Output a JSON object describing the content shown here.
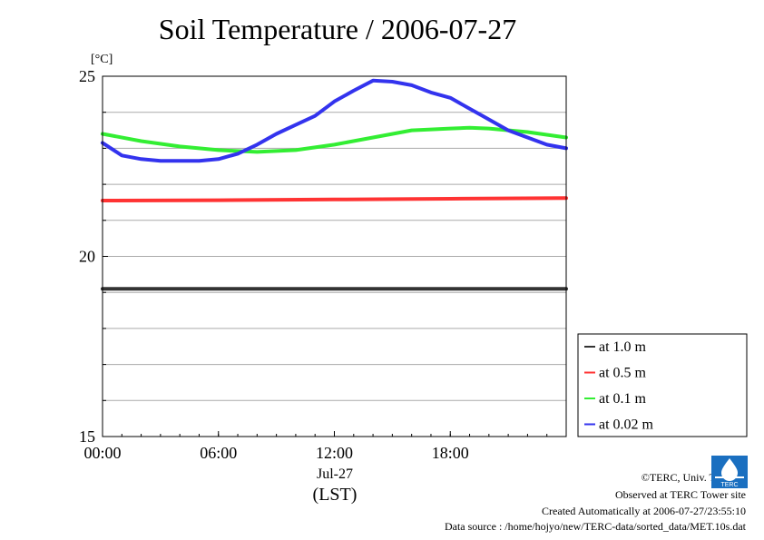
{
  "chart_data": {
    "type": "line",
    "title": "Soil Temperature / 2006-07-27",
    "ylabel": "[°C]",
    "xlabel": "(LST)",
    "date_label": "Jul-27",
    "ylim": [
      15,
      25
    ],
    "xlim": [
      0,
      24
    ],
    "y_ticks": [
      "15",
      "20",
      "25"
    ],
    "x_ticks": [
      "00:00",
      "06:00",
      "12:00",
      "18:00"
    ],
    "grid": true,
    "legend_position": "right",
    "series": [
      {
        "name": "at 1.0 m",
        "color": "#333333",
        "x": [
          0,
          6,
          12,
          18,
          24
        ],
        "y": [
          19.1,
          19.1,
          19.1,
          19.1,
          19.1
        ]
      },
      {
        "name": "at 0.5 m",
        "color": "#ff3333",
        "x": [
          0,
          6,
          12,
          18,
          24
        ],
        "y": [
          21.55,
          21.56,
          21.58,
          21.6,
          21.62
        ]
      },
      {
        "name": "at 0.1 m",
        "color": "#33ee33",
        "x": [
          0,
          2,
          4,
          6,
          8,
          10,
          12,
          14,
          16,
          18,
          19,
          20,
          22,
          24
        ],
        "y": [
          23.4,
          23.2,
          23.05,
          22.95,
          22.9,
          22.95,
          23.1,
          23.3,
          23.5,
          23.55,
          23.57,
          23.55,
          23.45,
          23.3
        ]
      },
      {
        "name": "at 0.02 m",
        "color": "#3333ee",
        "x": [
          0,
          1,
          2,
          3,
          4,
          5,
          6,
          7,
          8,
          9,
          10,
          11,
          12,
          13,
          14,
          15,
          16,
          17,
          18,
          19,
          20,
          21,
          22,
          23,
          24
        ],
        "y": [
          23.15,
          22.8,
          22.7,
          22.65,
          22.65,
          22.65,
          22.7,
          22.85,
          23.1,
          23.4,
          23.65,
          23.9,
          24.3,
          24.6,
          24.88,
          24.85,
          24.75,
          24.55,
          24.4,
          24.1,
          23.8,
          23.5,
          23.3,
          23.1,
          23.0
        ]
      }
    ]
  },
  "footer": {
    "copyright": "©TERC, Univ. Tsukuba",
    "site": "Observed at TERC Tower site",
    "created": "Created Automatically at 2006-07-27/23:55:10",
    "source": "Data source : /home/hojyo/new/TERC-data/sorted_data/MET.10s.dat"
  },
  "logo": {
    "text": "TERC"
  }
}
